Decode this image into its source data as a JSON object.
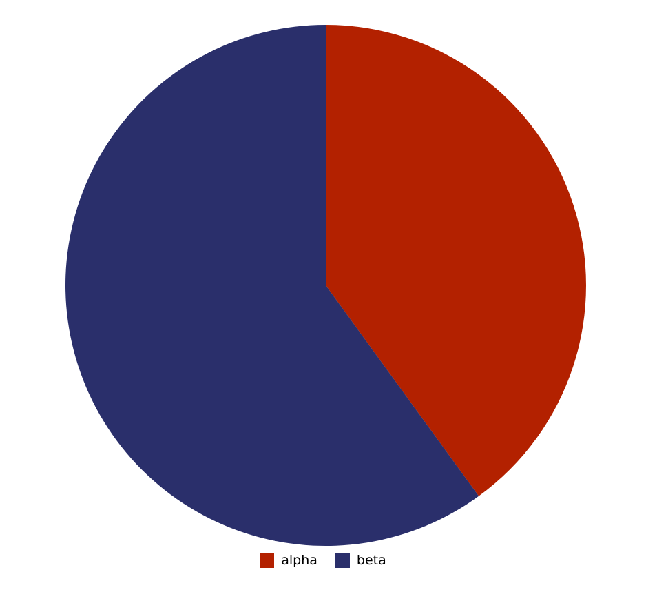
{
  "chart_data": {
    "type": "pie",
    "series": [
      {
        "name": "alpha",
        "value": 40,
        "color": "#b32100"
      },
      {
        "name": "beta",
        "value": 60,
        "color": "#2a2f6b"
      }
    ],
    "start": "12 o'clock",
    "direction": "clockwise",
    "legend_position": "bottom-center"
  }
}
